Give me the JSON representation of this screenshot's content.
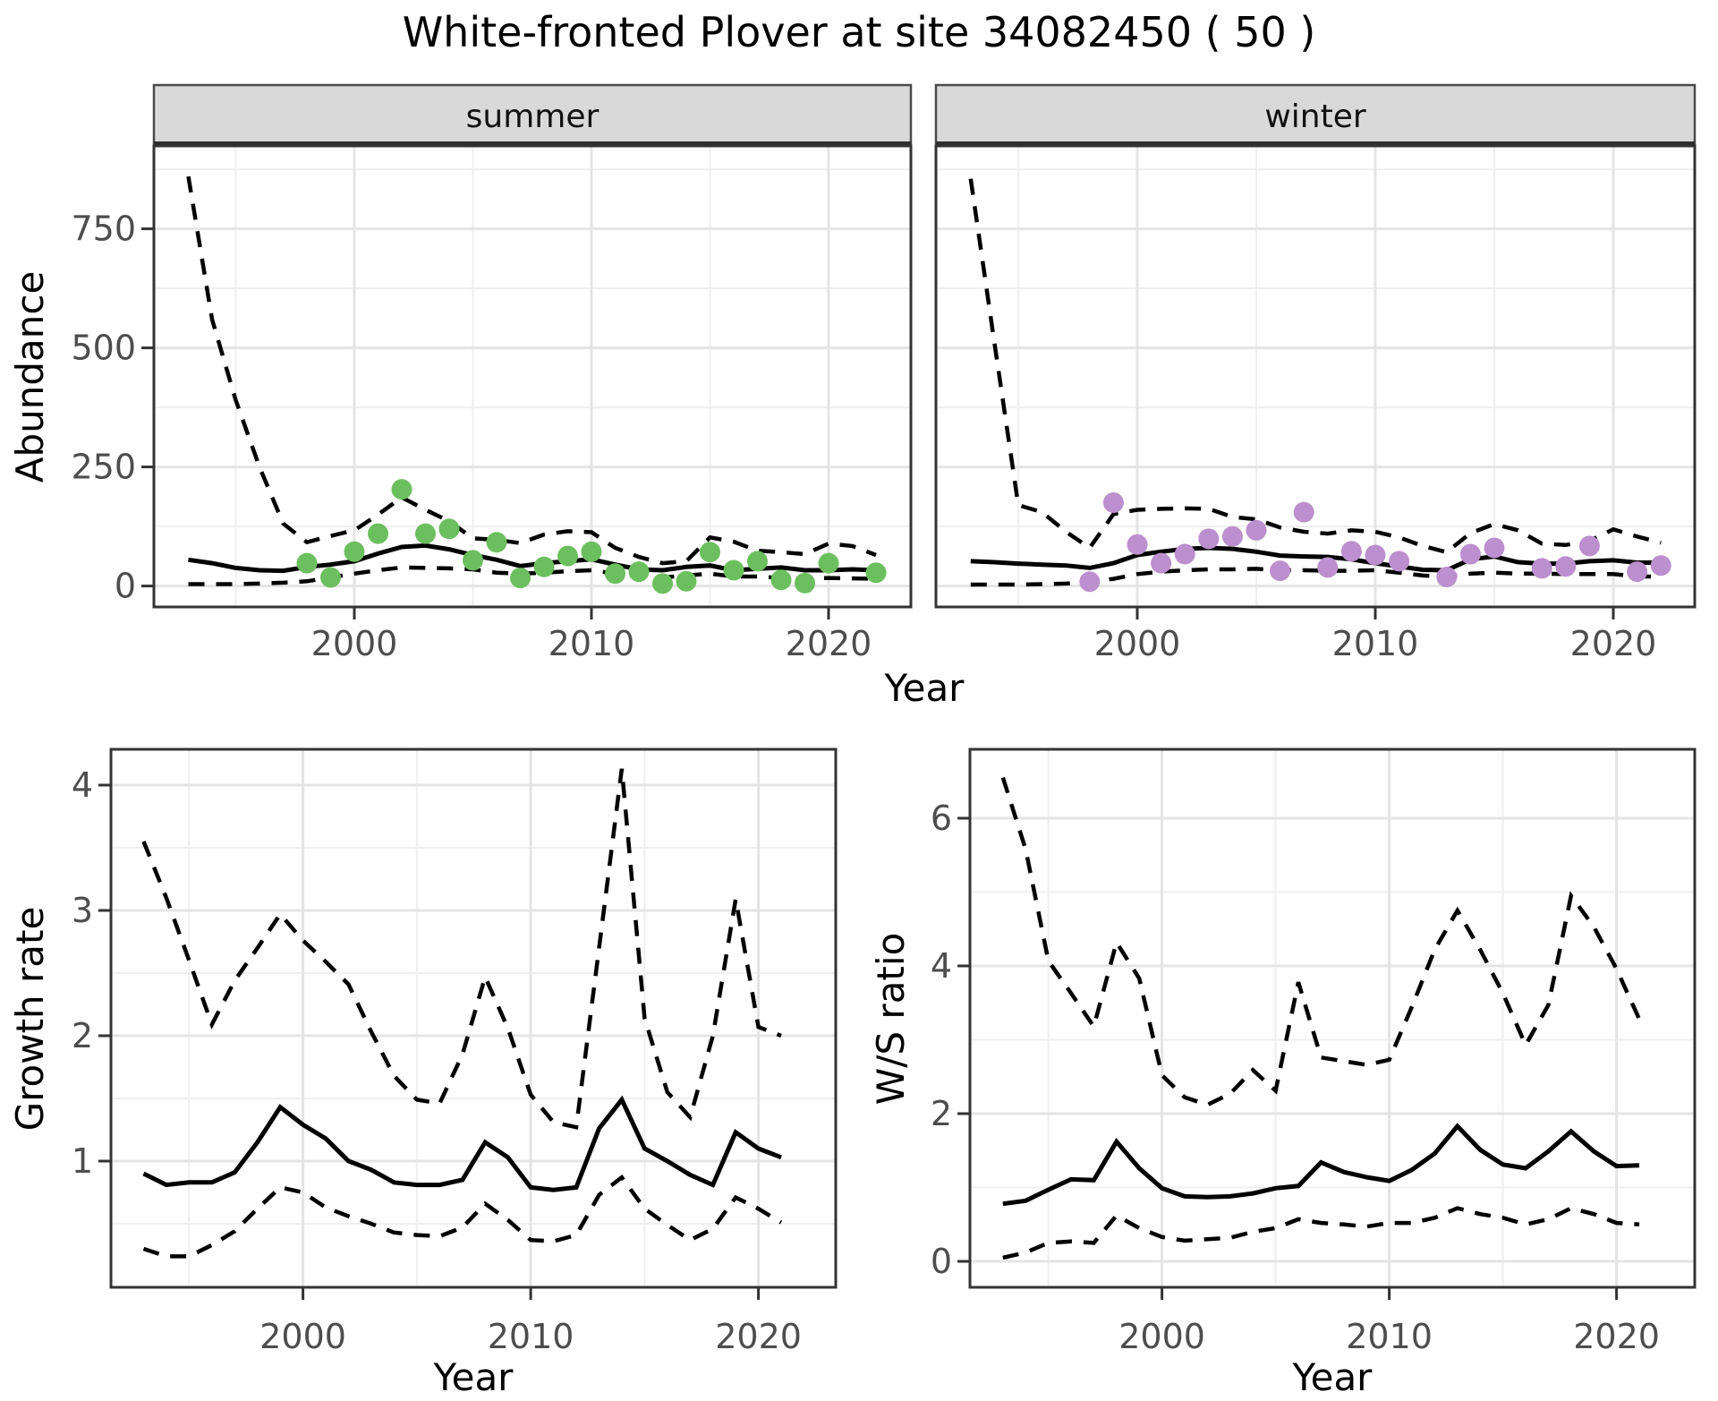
{
  "figure": {
    "title": "White-fronted Plover at site 34082450 ( 50 )",
    "colors": {
      "summer_point": "#6CBF5E",
      "winter_point": "#BC8FCE",
      "line": "#000000",
      "grid_major": "#e4e4e4",
      "grid_minor": "#efefef",
      "strip_fill": "#d9d9d9",
      "panel_border": "#333333",
      "tick_text": "#4d4d4d"
    }
  },
  "chart_data": [
    {
      "id": "abundance-summer",
      "type": "line",
      "facet_label": "summer",
      "ylabel": "Abundance",
      "xlabel": "Year",
      "x_ticks": [
        2000,
        2010,
        2020
      ],
      "y_ticks": [
        750,
        500,
        250,
        0
      ],
      "xlim": [
        1991.5,
        2023.5
      ],
      "ylim": [
        -44,
        924
      ],
      "grid": true,
      "years": [
        1993,
        1994,
        1995,
        1996,
        1997,
        1998,
        1999,
        2000,
        2001,
        2002,
        2003,
        2004,
        2005,
        2006,
        2007,
        2008,
        2009,
        2010,
        2011,
        2012,
        2013,
        2014,
        2015,
        2016,
        2017,
        2018,
        2019,
        2020,
        2021,
        2022
      ],
      "series": [
        {
          "name": "ci_upper",
          "style": "dashed",
          "values": [
            860,
            560,
            390,
            250,
            131,
            92,
            105,
            117,
            150,
            186,
            160,
            136,
            100,
            97,
            90,
            108,
            115,
            113,
            80,
            61,
            48,
            52,
            102,
            93,
            74,
            71,
            67,
            89,
            84,
            65
          ]
        },
        {
          "name": "median",
          "style": "solid",
          "values": [
            55,
            48,
            38,
            33,
            32,
            40,
            45,
            52,
            68,
            82,
            85,
            77,
            65,
            55,
            42,
            48,
            52,
            56,
            45,
            35,
            33,
            40,
            43,
            33,
            36,
            39,
            33,
            33,
            35,
            33
          ]
        },
        {
          "name": "ci_lower",
          "style": "dashed",
          "values": [
            4,
            4,
            4,
            5,
            7,
            10,
            18,
            26,
            33,
            39,
            38,
            37,
            35,
            28,
            26,
            28,
            31,
            33,
            26,
            20,
            18,
            22,
            26,
            20,
            20,
            17,
            15,
            17,
            16,
            15
          ]
        }
      ],
      "points": {
        "color": "#6CBF5E",
        "data": [
          [
            1998,
            48
          ],
          [
            1999,
            18
          ],
          [
            2000,
            72
          ],
          [
            2001,
            110
          ],
          [
            2002,
            203
          ],
          [
            2003,
            110
          ],
          [
            2004,
            120
          ],
          [
            2005,
            54
          ],
          [
            2006,
            92
          ],
          [
            2007,
            17
          ],
          [
            2008,
            40
          ],
          [
            2009,
            63
          ],
          [
            2010,
            72
          ],
          [
            2011,
            26
          ],
          [
            2012,
            30
          ],
          [
            2013,
            5
          ],
          [
            2014,
            10
          ],
          [
            2015,
            71
          ],
          [
            2016,
            33
          ],
          [
            2017,
            52
          ],
          [
            2018,
            13
          ],
          [
            2019,
            6
          ],
          [
            2020,
            48
          ],
          [
            2022,
            28
          ]
        ]
      }
    },
    {
      "id": "abundance-winter",
      "type": "line",
      "facet_label": "winter",
      "ylabel": "Abundance",
      "xlabel": "Year",
      "x_ticks": [
        2000,
        2010,
        2020
      ],
      "y_ticks": [
        750,
        500,
        250,
        0
      ],
      "xlim": [
        1991.5,
        2023.5
      ],
      "ylim": [
        -44,
        924
      ],
      "grid": true,
      "years": [
        1993,
        1994,
        1995,
        1996,
        1997,
        1998,
        1999,
        2000,
        2001,
        2002,
        2003,
        2004,
        2005,
        2006,
        2007,
        2008,
        2009,
        2010,
        2011,
        2012,
        2013,
        2014,
        2015,
        2016,
        2017,
        2018,
        2019,
        2020,
        2021,
        2022
      ],
      "series": [
        {
          "name": "ci_upper",
          "style": "dashed",
          "values": [
            855,
            510,
            170,
            155,
            114,
            80,
            151,
            160,
            162,
            163,
            162,
            145,
            140,
            123,
            114,
            110,
            117,
            114,
            102,
            84,
            71,
            111,
            130,
            117,
            89,
            86,
            95,
            119,
            104,
            91
          ]
        },
        {
          "name": "median",
          "style": "solid",
          "values": [
            52,
            50,
            47,
            45,
            43,
            38,
            48,
            65,
            72,
            78,
            80,
            78,
            72,
            64,
            62,
            61,
            56,
            48,
            41,
            34,
            33,
            56,
            62,
            50,
            47,
            47,
            52,
            54,
            49,
            49
          ]
        },
        {
          "name": "ci_lower",
          "style": "dashed",
          "values": [
            3,
            3,
            3,
            4,
            5,
            8,
            15,
            25,
            30,
            33,
            35,
            35,
            36,
            33,
            33,
            32,
            32,
            33,
            28,
            22,
            20,
            26,
            28,
            26,
            26,
            25,
            25,
            25,
            20,
            20
          ]
        }
      ],
      "points": {
        "color": "#BC8FCE",
        "data": [
          [
            1998,
            9
          ],
          [
            1999,
            175
          ],
          [
            2000,
            87
          ],
          [
            2001,
            48
          ],
          [
            2002,
            67
          ],
          [
            2003,
            99
          ],
          [
            2004,
            104
          ],
          [
            2005,
            117
          ],
          [
            2006,
            32
          ],
          [
            2007,
            155
          ],
          [
            2008,
            39
          ],
          [
            2009,
            73
          ],
          [
            2010,
            65
          ],
          [
            2011,
            52
          ],
          [
            2013,
            19
          ],
          [
            2014,
            67
          ],
          [
            2015,
            80
          ],
          [
            2017,
            37
          ],
          [
            2018,
            41
          ],
          [
            2019,
            84
          ],
          [
            2021,
            30
          ],
          [
            2022,
            43
          ]
        ]
      }
    },
    {
      "id": "growth-rate",
      "type": "line",
      "ylabel": "Growth rate",
      "xlabel": "Year",
      "x_ticks": [
        2000,
        2010,
        2020
      ],
      "y_ticks": [
        4,
        3,
        2,
        1
      ],
      "xlim": [
        1991.5,
        2023.5
      ],
      "ylim": [
        0,
        4.3
      ],
      "grid": true,
      "years": [
        1993,
        1994,
        1995,
        1996,
        1997,
        1998,
        1999,
        2000,
        2001,
        2002,
        2003,
        2004,
        2005,
        2006,
        2007,
        2008,
        2009,
        2010,
        2011,
        2012,
        2013,
        2014,
        2015,
        2016,
        2017,
        2018,
        2019,
        2020,
        2021
      ],
      "series": [
        {
          "name": "ci_upper",
          "style": "dashed",
          "values": [
            3.55,
            3.1,
            2.6,
            2.09,
            2.44,
            2.7,
            2.97,
            2.76,
            2.59,
            2.41,
            2.03,
            1.68,
            1.49,
            1.46,
            1.85,
            2.47,
            2.06,
            1.53,
            1.31,
            1.27,
            2.7,
            4.13,
            2.14,
            1.55,
            1.35,
            2.0,
            3.09,
            2.07,
            2.0
          ]
        },
        {
          "name": "median",
          "style": "solid",
          "values": [
            0.9,
            0.81,
            0.83,
            0.83,
            0.91,
            1.15,
            1.43,
            1.29,
            1.18,
            1.0,
            0.93,
            0.83,
            0.81,
            0.81,
            0.85,
            1.15,
            1.03,
            0.79,
            0.77,
            0.79,
            1.26,
            1.49,
            1.1,
            1.0,
            0.89,
            0.81,
            1.23,
            1.1,
            1.03
          ]
        },
        {
          "name": "ci_lower",
          "style": "dashed",
          "values": [
            0.3,
            0.24,
            0.24,
            0.33,
            0.44,
            0.62,
            0.79,
            0.75,
            0.63,
            0.56,
            0.5,
            0.43,
            0.41,
            0.4,
            0.47,
            0.66,
            0.53,
            0.37,
            0.36,
            0.41,
            0.73,
            0.87,
            0.62,
            0.49,
            0.37,
            0.46,
            0.71,
            0.62,
            0.51
          ]
        }
      ]
    },
    {
      "id": "ws-ratio",
      "type": "line",
      "ylabel": "W/S ratio",
      "xlabel": "Year",
      "x_ticks": [
        2000,
        2010,
        2020
      ],
      "y_ticks": [
        6,
        4,
        2,
        0
      ],
      "xlim": [
        1991.5,
        2023.5
      ],
      "ylim": [
        -0.3,
        6.9
      ],
      "grid": true,
      "years": [
        1993,
        1994,
        1995,
        1996,
        1997,
        1998,
        1999,
        2000,
        2001,
        2002,
        2003,
        2004,
        2005,
        2006,
        2007,
        2008,
        2009,
        2010,
        2011,
        2012,
        2013,
        2014,
        2015,
        2016,
        2017,
        2018,
        2019,
        2020,
        2021
      ],
      "series": [
        {
          "name": "ci_upper",
          "style": "dashed",
          "values": [
            6.55,
            5.58,
            4.07,
            3.63,
            3.18,
            4.32,
            3.83,
            2.52,
            2.22,
            2.12,
            2.27,
            2.59,
            2.31,
            3.78,
            2.76,
            2.71,
            2.66,
            2.73,
            3.45,
            4.22,
            4.75,
            4.22,
            3.63,
            2.93,
            3.47,
            4.95,
            4.53,
            3.96,
            3.28
          ]
        },
        {
          "name": "median",
          "style": "solid",
          "values": [
            0.78,
            0.82,
            0.97,
            1.11,
            1.1,
            1.62,
            1.26,
            0.99,
            0.88,
            0.87,
            0.88,
            0.92,
            0.99,
            1.02,
            1.34,
            1.21,
            1.14,
            1.09,
            1.24,
            1.46,
            1.83,
            1.51,
            1.31,
            1.26,
            1.49,
            1.76,
            1.49,
            1.29,
            1.3
          ]
        },
        {
          "name": "ci_lower",
          "style": "dashed",
          "values": [
            0.05,
            0.12,
            0.25,
            0.27,
            0.25,
            0.62,
            0.45,
            0.33,
            0.28,
            0.3,
            0.32,
            0.4,
            0.45,
            0.57,
            0.52,
            0.5,
            0.47,
            0.52,
            0.52,
            0.59,
            0.72,
            0.64,
            0.59,
            0.5,
            0.57,
            0.72,
            0.64,
            0.52,
            0.5
          ]
        }
      ]
    }
  ]
}
